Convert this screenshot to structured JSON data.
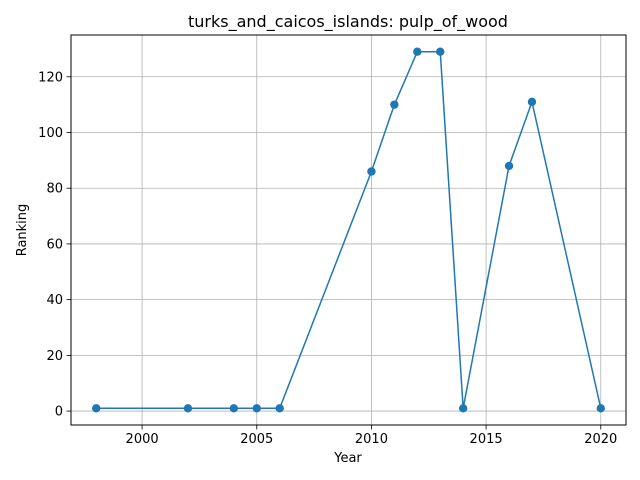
{
  "chart_data": {
    "type": "line",
    "title": "turks_and_caicos_islands: pulp_of_wood",
    "xlabel": "Year",
    "ylabel": "Ranking",
    "xlim": [
      1996.9,
      2021.1
    ],
    "ylim": [
      -5,
      135
    ],
    "xticks": [
      2000,
      2005,
      2010,
      2015,
      2020
    ],
    "yticks": [
      0,
      20,
      40,
      60,
      80,
      100,
      120
    ],
    "grid": true,
    "line_color": "#1f77b4",
    "series": [
      {
        "x": [
          1998,
          2002,
          2004,
          2005,
          2006,
          2010,
          2011,
          2012,
          2013,
          2014,
          2016,
          2017,
          2020
        ],
        "y": [
          1,
          1,
          1,
          1,
          1,
          86,
          110,
          129,
          129,
          1,
          88,
          111,
          1
        ]
      }
    ]
  }
}
